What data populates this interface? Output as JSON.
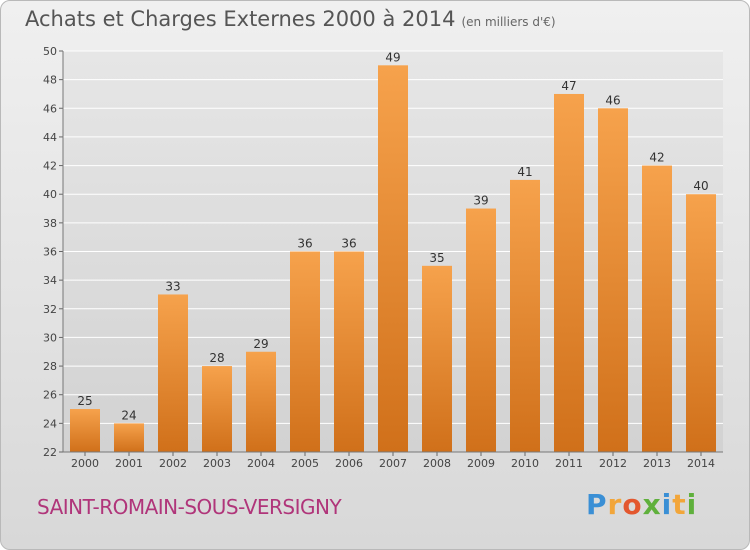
{
  "title": "Achats et Charges Externes 2000 à 2014",
  "subtitle": "(en milliers d'€)",
  "place": "SAINT-ROMAIN-SOUS-VERSIGNY",
  "logo": {
    "letters": [
      "P",
      "r",
      "o",
      "x",
      "i",
      "t",
      "i"
    ],
    "colors": [
      "#3a8fd5",
      "#f2a63a",
      "#e3572e",
      "#5fb03c",
      "#3a8fd5",
      "#f2a63a",
      "#5fb03c"
    ]
  },
  "colors": {
    "bar_top": "#f6a24c",
    "bar_bottom": "#d0701a",
    "grid": "#ffffff"
  },
  "chart_data": {
    "type": "bar",
    "categories": [
      "2000",
      "2001",
      "2002",
      "2003",
      "2004",
      "2005",
      "2006",
      "2007",
      "2008",
      "2009",
      "2010",
      "2011",
      "2012",
      "2013",
      "2014"
    ],
    "values": [
      25,
      24,
      33,
      28,
      29,
      36,
      36,
      49,
      35,
      39,
      41,
      47,
      46,
      42,
      40
    ],
    "ylim": [
      22,
      50
    ],
    "yticks": [
      22,
      24,
      26,
      28,
      30,
      32,
      34,
      36,
      38,
      40,
      42,
      44,
      46,
      48,
      50
    ],
    "grid": true,
    "legend": "none"
  }
}
